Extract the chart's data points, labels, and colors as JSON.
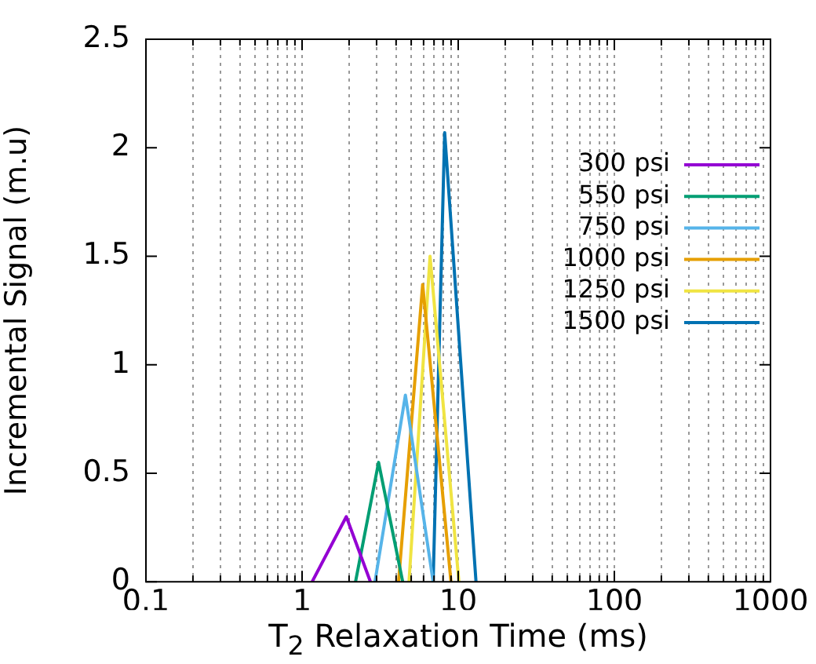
{
  "chart_data": {
    "type": "line",
    "xlabel": "T$_{2}$ Relaxation Time (ms)",
    "ylabel": "Incremental Signal (m.u)",
    "xlim": [
      0.1,
      1000
    ],
    "ylim": [
      0,
      2.5
    ],
    "xticks": [
      0.1,
      {
        "value": 0.2,
        "label": null
      },
      {
        "value": 0.3,
        "label": null
      },
      {
        "value": 0.4,
        "label": null
      },
      {
        "value": 0.5,
        "label": null
      },
      {
        "value": 0.6,
        "label": null
      },
      {
        "value": 0.7,
        "label": null
      },
      {
        "value": 0.8,
        "label": null
      },
      {
        "value": 0.9,
        "label": null
      },
      1,
      {
        "value": 2,
        "label": null
      },
      {
        "value": 3,
        "label": null
      },
      {
        "value": 4,
        "label": null
      },
      {
        "value": 5,
        "label": null
      },
      {
        "value": 6,
        "label": null
      },
      {
        "value": 7,
        "label": null
      },
      {
        "value": 8,
        "label": null
      },
      {
        "value": 9,
        "label": null
      },
      10,
      {
        "value": 20,
        "label": null
      },
      {
        "value": 30,
        "label": null
      },
      {
        "value": 40,
        "label": null
      },
      {
        "value": 50,
        "label": null
      },
      {
        "value": 60,
        "label": null
      },
      {
        "value": 70,
        "label": null
      },
      {
        "value": 80,
        "label": null
      },
      {
        "value": 90,
        "label": null
      },
      100,
      {
        "value": 200,
        "label": null
      },
      {
        "value": 300,
        "label": null
      },
      {
        "value": 400,
        "label": null
      },
      {
        "value": 500,
        "label": null
      },
      {
        "value": 600,
        "label": null
      },
      {
        "value": 700,
        "label": null
      },
      {
        "value": 800,
        "label": null
      },
      {
        "value": 900,
        "label": null
      },
      1000
    ],
    "yticks": [
      0,
      0.5,
      1,
      1.5,
      2,
      2.5
    ],
    "log": "x",
    "grid": "x",
    "legend": "right",
    "marker": "none",
    "line_style": "solid",
    "series": [
      {
        "name": "300 psi",
        "color": "#9400d3",
        "x": [
          1.16,
          1.92,
          2.74
        ],
        "values": [
          0,
          0.3,
          0
        ]
      },
      {
        "name": "550 psi",
        "color": "#009e73",
        "x": [
          2.2,
          3.09,
          4.41
        ],
        "values": [
          0,
          0.55,
          0
        ]
      },
      {
        "name": "750 psi",
        "color": "#56b4e9",
        "x": [
          2.93,
          4.59,
          6.91
        ],
        "values": [
          0,
          0.86,
          0
        ]
      },
      {
        "name": "1000 psi",
        "color": "#e69f00",
        "x": [
          4.15,
          5.92,
          8.99
        ],
        "values": [
          0,
          1.37,
          0
        ]
      },
      {
        "name": "1250 psi",
        "color": "#f0e442",
        "x": [
          4.84,
          6.6,
          10.1
        ],
        "values": [
          0,
          1.5,
          0
        ]
      },
      {
        "name": "1500 psi",
        "color": "#0072b2",
        "x": [
          6.91,
          8.19,
          13
        ],
        "values": [
          0,
          2.07,
          0
        ]
      }
    ]
  }
}
